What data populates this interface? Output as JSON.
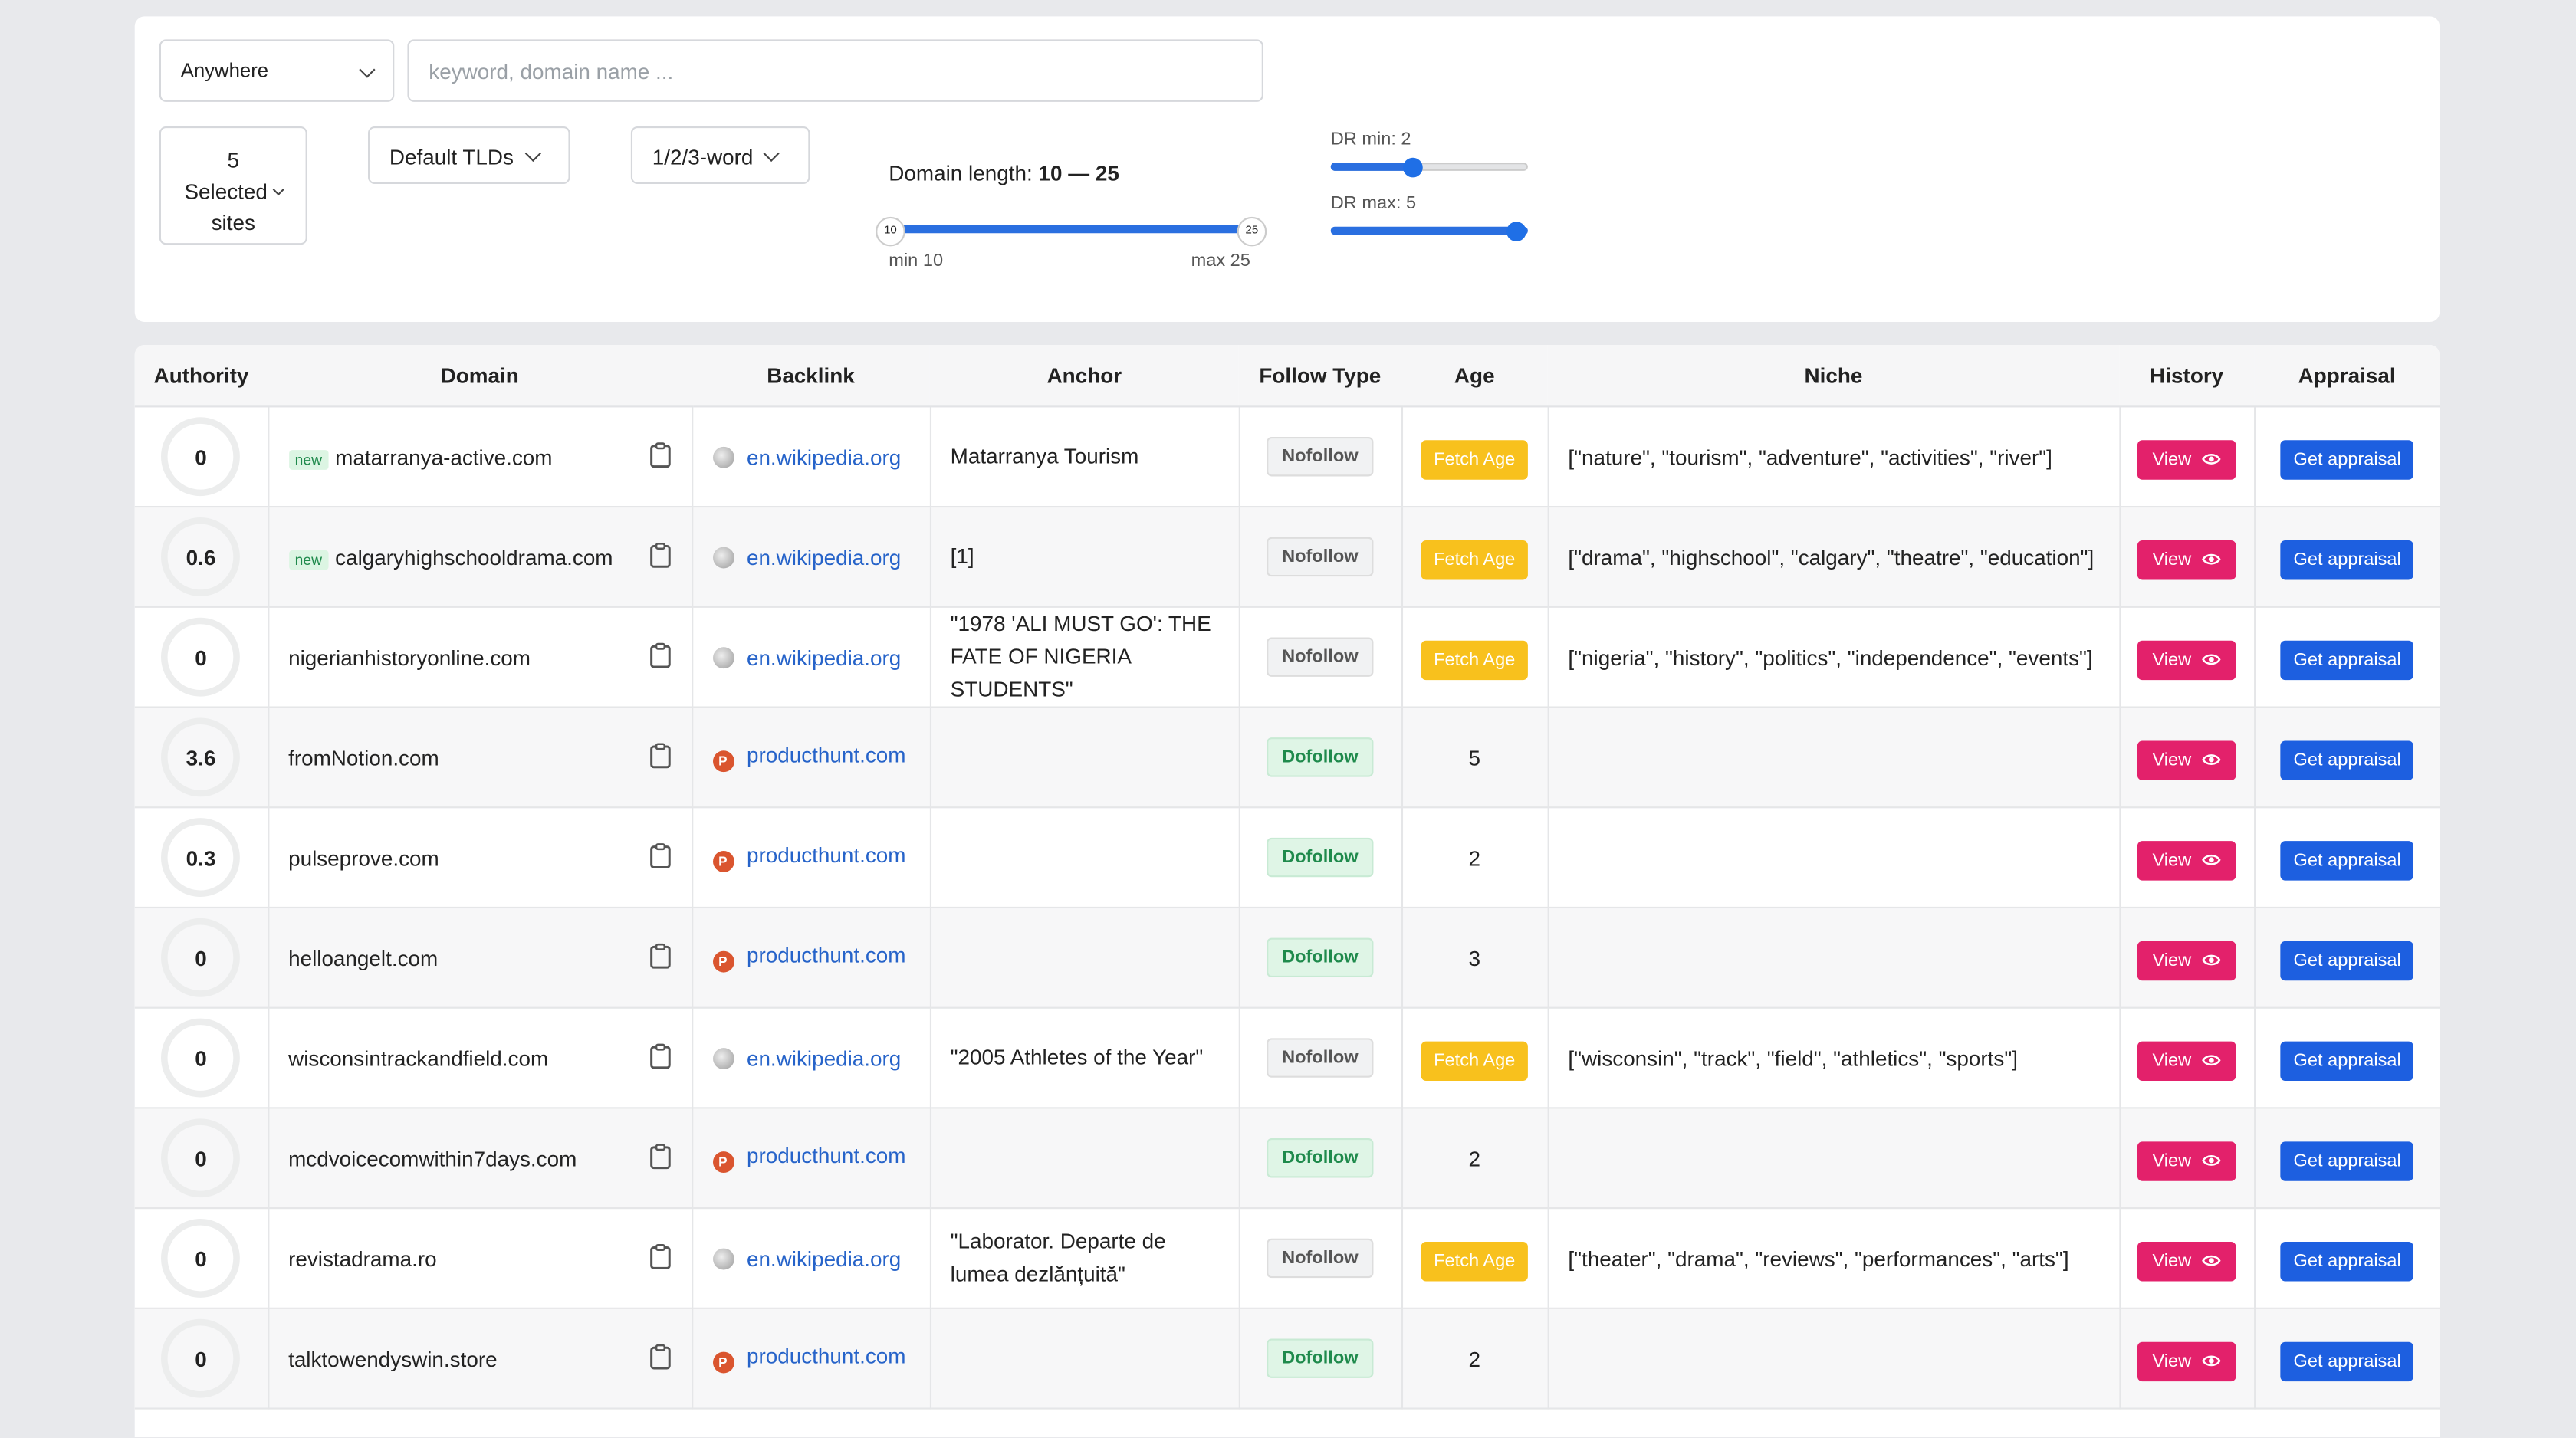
{
  "filters": {
    "location": "Anywhere",
    "search_placeholder": "keyword, domain name ...",
    "sites_count": "5",
    "sites_label": "Selected",
    "sites_suffix": "sites",
    "tlds": "Default TLDs",
    "words": "1/2/3-word",
    "domain_length_label": "Domain length:",
    "domain_length_min": "10",
    "domain_length_dash": "—",
    "domain_length_max": "25",
    "slider_min_label": "min 10",
    "slider_max_label": "max 25",
    "dr_min_label": "DR min: 2",
    "dr_max_label": "DR max: 5"
  },
  "table": {
    "columns": [
      "Authority",
      "Domain",
      "Backlink",
      "Anchor",
      "Follow Type",
      "Age",
      "Niche",
      "History",
      "Appraisal"
    ],
    "rows": [
      {
        "authority": "0",
        "badge": "new",
        "domain": "matarranya-active.com",
        "icon": null,
        "backlink": "en.wikipedia.org",
        "anchor": "Matarranya Tourism",
        "follow": "Nofollow",
        "age": "Fetch Age",
        "niche": "[\"nature\", \"tourism\", \"adventure\", \"activities\", \"river\"]",
        "history": "View",
        "appraisal": "Get appraisal"
      },
      {
        "authority": "0.6",
        "badge": "new",
        "domain": "calgaryhighschooldrama.com",
        "icon": null,
        "backlink": "en.wikipedia.org",
        "anchor": "[1]",
        "follow": "Nofollow",
        "age": "Fetch Age",
        "niche": "[\"drama\", \"highschool\", \"calgary\", \"theatre\", \"education\"]",
        "history": "View",
        "appraisal": "Get appraisal"
      },
      {
        "authority": "0",
        "badge": null,
        "domain": "nigerianhistoryonline.com",
        "icon": null,
        "backlink": "en.wikipedia.org",
        "anchor": "\"1978 'ALI MUST GO': THE FATE OF NIGERIA STUDENTS\"",
        "follow": "Nofollow",
        "age": "Fetch Age",
        "niche": "[\"nigeria\", \"history\", \"politics\", \"independence\", \"events\"]",
        "history": "View",
        "appraisal": "Get appraisal"
      },
      {
        "authority": "3.6",
        "badge": null,
        "domain": "fromNotion.com",
        "icon": "P",
        "backlink": "producthunt.com",
        "anchor": null,
        "follow": "Dofollow",
        "age": "5",
        "niche": null,
        "history": "View",
        "appraisal": "Get appraisal"
      },
      {
        "authority": "0.3",
        "badge": null,
        "domain": "pulseprove.com",
        "icon": "P",
        "backlink": "producthunt.com",
        "anchor": null,
        "follow": "Dofollow",
        "age": "2",
        "niche": null,
        "history": "View",
        "appraisal": "Get appraisal"
      },
      {
        "authority": "0",
        "badge": null,
        "domain": "helloangelt.com",
        "icon": "P",
        "backlink": "producthunt.com",
        "anchor": null,
        "follow": "Dofollow",
        "age": "3",
        "niche": null,
        "history": "View",
        "appraisal": "Get appraisal"
      },
      {
        "authority": "0",
        "badge": null,
        "domain": "wisconsintrackandfield.com",
        "icon": null,
        "backlink": "en.wikipedia.org",
        "anchor": "\"2005 Athletes of the Year\"",
        "follow": "Nofollow",
        "age": "Fetch Age",
        "niche": "[\"wisconsin\", \"track\", \"field\", \"athletics\", \"sports\"]",
        "history": "View",
        "appraisal": "Get appraisal"
      },
      {
        "authority": "0",
        "badge": null,
        "domain": "mcdvoicecomwithin7days.com",
        "icon": "P",
        "backlink": "producthunt.com",
        "anchor": null,
        "follow": "Dofollow",
        "age": "2",
        "niche": null,
        "history": "View",
        "appraisal": "Get appraisal"
      },
      {
        "authority": "0",
        "badge": null,
        "domain": "revistadrama.ro",
        "icon": null,
        "backlink": "en.wikipedia.org",
        "anchor": "\"Laborator. Departe de lumea dezlănțuită\"",
        "follow": "Nofollow",
        "age": "Fetch Age",
        "niche": "[\"theater\", \"drama\", \"reviews\", \"performances\", \"arts\"]",
        "history": "View",
        "appraisal": "Get appraisal"
      },
      {
        "authority": "0",
        "badge": null,
        "domain": "talktowendyswin.store",
        "icon": "P",
        "backlink": "producthunt.com",
        "anchor": null,
        "follow": "Dofollow",
        "age": "2",
        "niche": null,
        "history": "View",
        "appraisal": "Get appraisal"
      }
    ]
  }
}
